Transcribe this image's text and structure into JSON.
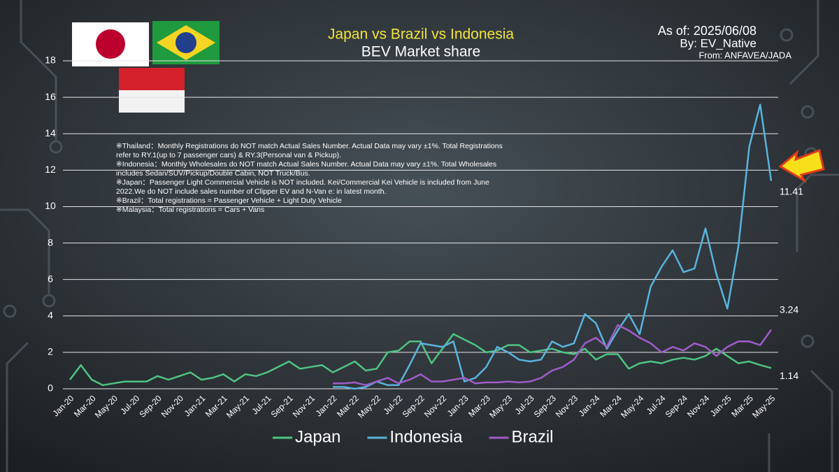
{
  "chart_data": {
    "type": "line",
    "title": "Japan vs Brazil vs Indonesia",
    "subtitle": "BEV Market share",
    "as_of": "As of: 2025/06/08",
    "by": "By: EV_Native",
    "source": "From: ANFAVEA/JADA",
    "notes": [
      "※Thailand：Monthly Registrations do NOT match Actual Sales Number. Actual Data may vary ±1%. Total Registrations refer to RY.1(up to 7 passenger cars) & RY.3(Personal van & Pickup).",
      "※Indonesia：Monthly Wholesales do NOT match Actual Sales Number. Actual Data may vary ±1%. Total Wholesales includes Sedan/SUV/Pickup/Double Cabin, NOT Truck/Bus.",
      "※Japan：Passenger Light Commercial Vehicle is NOT included. Kei/Commercial Kei Vehicle is included from June 2022.We do NOT include sales number of Clipper EV and N-Van e: in latest month.",
      "※Brazil：Total registrations = Passenger Vehicle + Light Duty Vehicle",
      "※Malaysia：Total registrations = Cars + Vans"
    ],
    "categories": [
      "Jan-20",
      null,
      "Mar-20",
      null,
      "May-20",
      null,
      "Jul-20",
      null,
      "Sep-20",
      null,
      "Nov-20",
      null,
      "Jan-21",
      null,
      "Mar-21",
      null,
      "May-21",
      null,
      "Jul-21",
      null,
      "Sep-21",
      null,
      "Nov-21",
      null,
      "Jan-22",
      null,
      "Mar-22",
      null,
      "May-22",
      null,
      "Jul-22",
      null,
      "Sep-22",
      null,
      "Nov-22",
      null,
      "Jan-23",
      null,
      "Mar-23",
      null,
      "May-23",
      null,
      "Jul-23",
      null,
      "Sep-23",
      null,
      "Nov-23",
      null,
      "Jan-24",
      null,
      "Mar-24",
      null,
      "May-24",
      null,
      "Jul-24",
      null,
      "Sep-24",
      null,
      "Nov-24",
      null,
      "Jan-25",
      null,
      "Mar-25",
      null,
      "May-25"
    ],
    "series": [
      {
        "name": "Japan",
        "color": "#4fc483",
        "values": [
          0.5,
          1.3,
          0.5,
          0.2,
          0.3,
          0.4,
          0.4,
          0.4,
          0.7,
          0.5,
          0.7,
          0.9,
          0.5,
          0.6,
          0.8,
          0.4,
          0.8,
          0.7,
          0.9,
          1.2,
          1.5,
          1.1,
          1.2,
          1.3,
          0.9,
          1.2,
          1.5,
          1.0,
          1.1,
          2.0,
          2.1,
          2.6,
          2.6,
          1.4,
          2.2,
          3.0,
          2.7,
          2.4,
          2.0,
          2.1,
          2.4,
          2.4,
          2.0,
          2.1,
          2.2,
          2.0,
          1.9,
          2.2,
          1.6,
          1.9,
          1.9,
          1.1,
          1.4,
          1.5,
          1.4,
          1.6,
          1.7,
          1.6,
          1.8,
          2.2,
          1.8,
          1.4,
          1.5,
          1.3,
          1.14
        ]
      },
      {
        "name": "Indonesia",
        "color": "#59b3dc",
        "values": [
          null,
          null,
          null,
          null,
          null,
          null,
          null,
          null,
          null,
          null,
          null,
          null,
          null,
          null,
          null,
          null,
          null,
          null,
          null,
          null,
          null,
          null,
          null,
          null,
          0.1,
          0.1,
          0.0,
          0.1,
          0.4,
          0.2,
          0.2,
          1.3,
          2.5,
          2.4,
          2.3,
          2.6,
          0.4,
          0.6,
          1.2,
          2.3,
          2.0,
          1.6,
          1.5,
          1.6,
          2.6,
          2.3,
          2.5,
          4.1,
          3.6,
          2.2,
          3.2,
          4.1,
          3.0,
          5.6,
          6.7,
          7.6,
          6.4,
          6.6,
          8.8,
          6.3,
          4.4,
          7.8,
          13.3,
          15.6,
          11.41
        ]
      },
      {
        "name": "Brazil",
        "color": "#a05cc9",
        "values": [
          null,
          null,
          null,
          null,
          null,
          null,
          null,
          null,
          null,
          null,
          null,
          null,
          null,
          null,
          null,
          null,
          null,
          null,
          null,
          null,
          null,
          null,
          null,
          null,
          0.3,
          0.3,
          0.35,
          0.2,
          0.4,
          0.6,
          0.3,
          0.5,
          0.8,
          0.4,
          0.4,
          0.5,
          0.6,
          0.3,
          0.35,
          0.35,
          0.4,
          0.35,
          0.4,
          0.6,
          1.0,
          1.2,
          1.6,
          2.5,
          2.8,
          2.3,
          3.5,
          3.2,
          2.8,
          2.5,
          2.0,
          2.3,
          2.1,
          2.5,
          2.3,
          1.8,
          2.3,
          2.6,
          2.6,
          2.4,
          3.24
        ]
      }
    ],
    "ylim": [
      0,
      18
    ],
    "yticks": [
      0,
      2,
      4,
      6,
      8,
      10,
      12,
      14,
      16,
      18
    ],
    "grid": true,
    "legend": "bottom"
  }
}
